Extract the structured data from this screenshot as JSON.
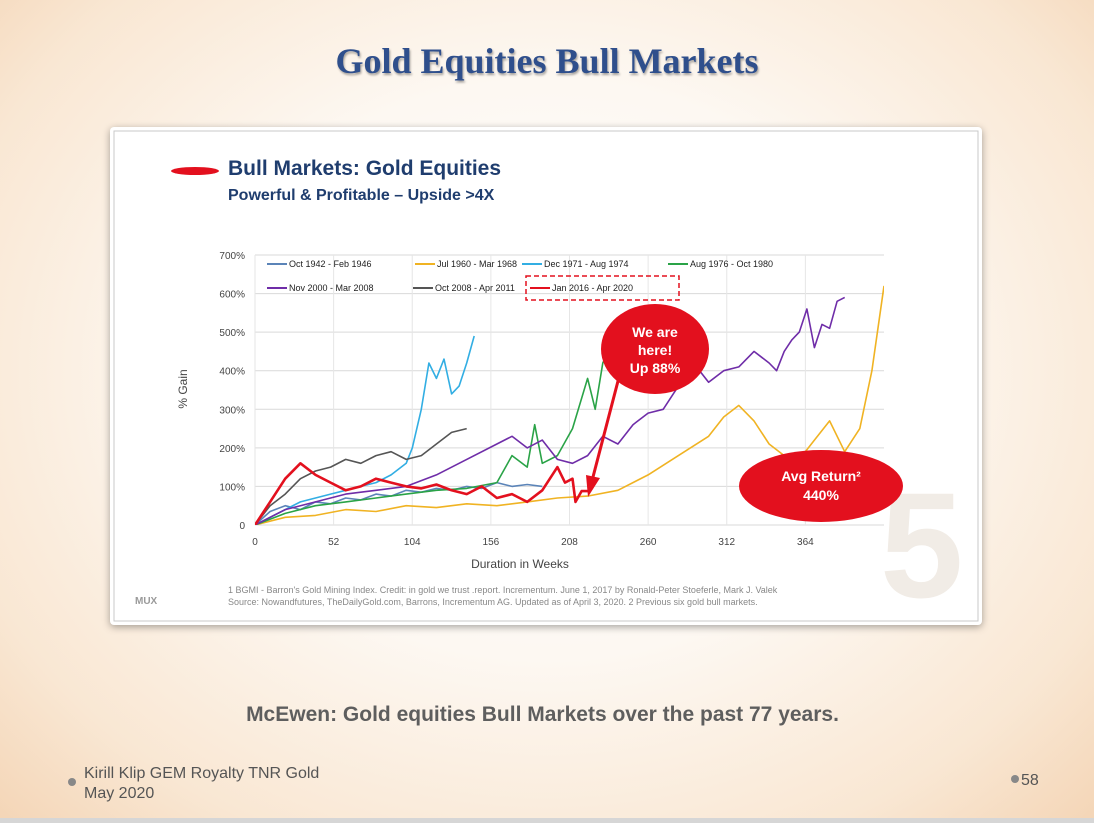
{
  "slide": {
    "title": "Gold Equities Bull Markets",
    "caption": "McEwen: Gold equities Bull Markets over the past 77 years.",
    "footer_author": "Kirill Klip GEM Royalty TNR Gold",
    "footer_date": "May 2020",
    "page_number": "58"
  },
  "embedded": {
    "heading": "Bull Markets: Gold Equities",
    "subheading": "Powerful & Profitable – Upside >4X",
    "callout_here": [
      "We are",
      "here!",
      "Up 88%"
    ],
    "callout_avg": [
      "Avg Return²",
      "440%"
    ],
    "watermark": "5",
    "logo": "MUX",
    "footnote_1": "1 BGMI - Barron's Gold Mining Index. Credit: in gold we trust .report. Incrementum. June 1, 2017 by Ronald-Peter Stoeferle, Mark J. Valek",
    "footnote_2": "Source: Nowandfutures, TheDailyGold.com, Barrons, Incrementum AG. Updated as of April 3, 2020. 2 Previous six gold bull markets.",
    "colors": {
      "heading": "#1f3d6e",
      "callout": "#e8102a"
    }
  },
  "chart_data": {
    "type": "line",
    "xlabel": "Duration in Weeks",
    "ylabel": "% Gain",
    "xlim": [
      0,
      416
    ],
    "ylim": [
      0,
      700
    ],
    "x_ticks": [
      0,
      52,
      104,
      156,
      208,
      260,
      312,
      364
    ],
    "y_ticks": [
      0,
      100,
      200,
      300,
      400,
      500,
      600,
      700
    ],
    "y_tick_labels": [
      "0",
      "100%",
      "200%",
      "300%",
      "400%",
      "500%",
      "600%",
      "700%"
    ],
    "grid": true,
    "legend_position": "top",
    "series": [
      {
        "name": "Oct 1942 - Feb 1946",
        "color": "#5b84b8",
        "x": [
          0,
          10,
          20,
          30,
          40,
          50,
          60,
          70,
          80,
          90,
          100,
          110,
          120,
          130,
          140,
          150,
          160,
          170,
          180,
          190
        ],
        "y": [
          0,
          35,
          50,
          40,
          60,
          55,
          70,
          65,
          80,
          75,
          90,
          85,
          95,
          90,
          100,
          95,
          110,
          100,
          105,
          100
        ]
      },
      {
        "name": "Jul 1960 - Mar 1968",
        "color": "#f0b323",
        "x": [
          0,
          20,
          40,
          60,
          80,
          100,
          120,
          140,
          160,
          180,
          200,
          220,
          240,
          260,
          280,
          300,
          310,
          320,
          330,
          340,
          350,
          360,
          370,
          380,
          390,
          400,
          408,
          416
        ],
        "y": [
          0,
          20,
          25,
          40,
          35,
          50,
          45,
          55,
          50,
          60,
          70,
          75,
          90,
          130,
          180,
          230,
          280,
          310,
          270,
          210,
          180,
          170,
          220,
          270,
          190,
          250,
          400,
          620
        ]
      },
      {
        "name": "Dec 1971 - Aug 1974",
        "color": "#32aee3",
        "x": [
          0,
          10,
          20,
          30,
          40,
          50,
          60,
          70,
          80,
          90,
          100,
          104,
          110,
          115,
          120,
          125,
          130,
          135,
          140,
          145
        ],
        "y": [
          0,
          20,
          40,
          60,
          70,
          80,
          90,
          100,
          110,
          130,
          160,
          200,
          300,
          420,
          380,
          430,
          340,
          360,
          420,
          490
        ]
      },
      {
        "name": "Aug 1976 - Oct 1980",
        "color": "#2aa347",
        "x": [
          0,
          20,
          40,
          60,
          80,
          100,
          120,
          140,
          160,
          170,
          180,
          185,
          190,
          200,
          210,
          220,
          225,
          230,
          235,
          240,
          245,
          250
        ],
        "y": [
          0,
          30,
          50,
          60,
          70,
          80,
          90,
          95,
          110,
          180,
          150,
          260,
          160,
          180,
          250,
          380,
          300,
          420,
          460,
          520,
          550,
          560
        ]
      },
      {
        "name": "Nov 2000 - Mar 2008",
        "color": "#6f2da8",
        "x": [
          0,
          20,
          40,
          60,
          80,
          100,
          120,
          140,
          160,
          170,
          180,
          190,
          200,
          210,
          220,
          230,
          240,
          250,
          260,
          270,
          280,
          290,
          300,
          310,
          320,
          330,
          340,
          345,
          350,
          355,
          360,
          365,
          370,
          375,
          380,
          385,
          390
        ],
        "y": [
          0,
          40,
          60,
          80,
          90,
          100,
          130,
          170,
          210,
          230,
          200,
          220,
          170,
          160,
          180,
          230,
          210,
          260,
          290,
          300,
          360,
          420,
          370,
          400,
          410,
          450,
          420,
          400,
          450,
          480,
          500,
          560,
          460,
          520,
          510,
          580,
          590
        ]
      },
      {
        "name": "Oct 2008 - Apr 2011",
        "color": "#555555",
        "x": [
          0,
          10,
          20,
          30,
          40,
          50,
          60,
          70,
          80,
          90,
          100,
          110,
          120,
          130,
          140
        ],
        "y": [
          0,
          50,
          80,
          120,
          140,
          150,
          170,
          160,
          180,
          190,
          170,
          180,
          210,
          240,
          250
        ]
      },
      {
        "name": "Jan 2016 - Apr 2020",
        "color": "#e3101e",
        "x": [
          0,
          10,
          20,
          30,
          40,
          50,
          60,
          70,
          80,
          90,
          100,
          110,
          120,
          130,
          140,
          150,
          160,
          170,
          180,
          190,
          200,
          205,
          210,
          212,
          216,
          220
        ],
        "y": [
          0,
          60,
          120,
          160,
          130,
          110,
          90,
          100,
          120,
          110,
          100,
          95,
          105,
          90,
          80,
          100,
          70,
          80,
          60,
          90,
          150,
          110,
          120,
          60,
          88,
          88
        ]
      }
    ]
  }
}
